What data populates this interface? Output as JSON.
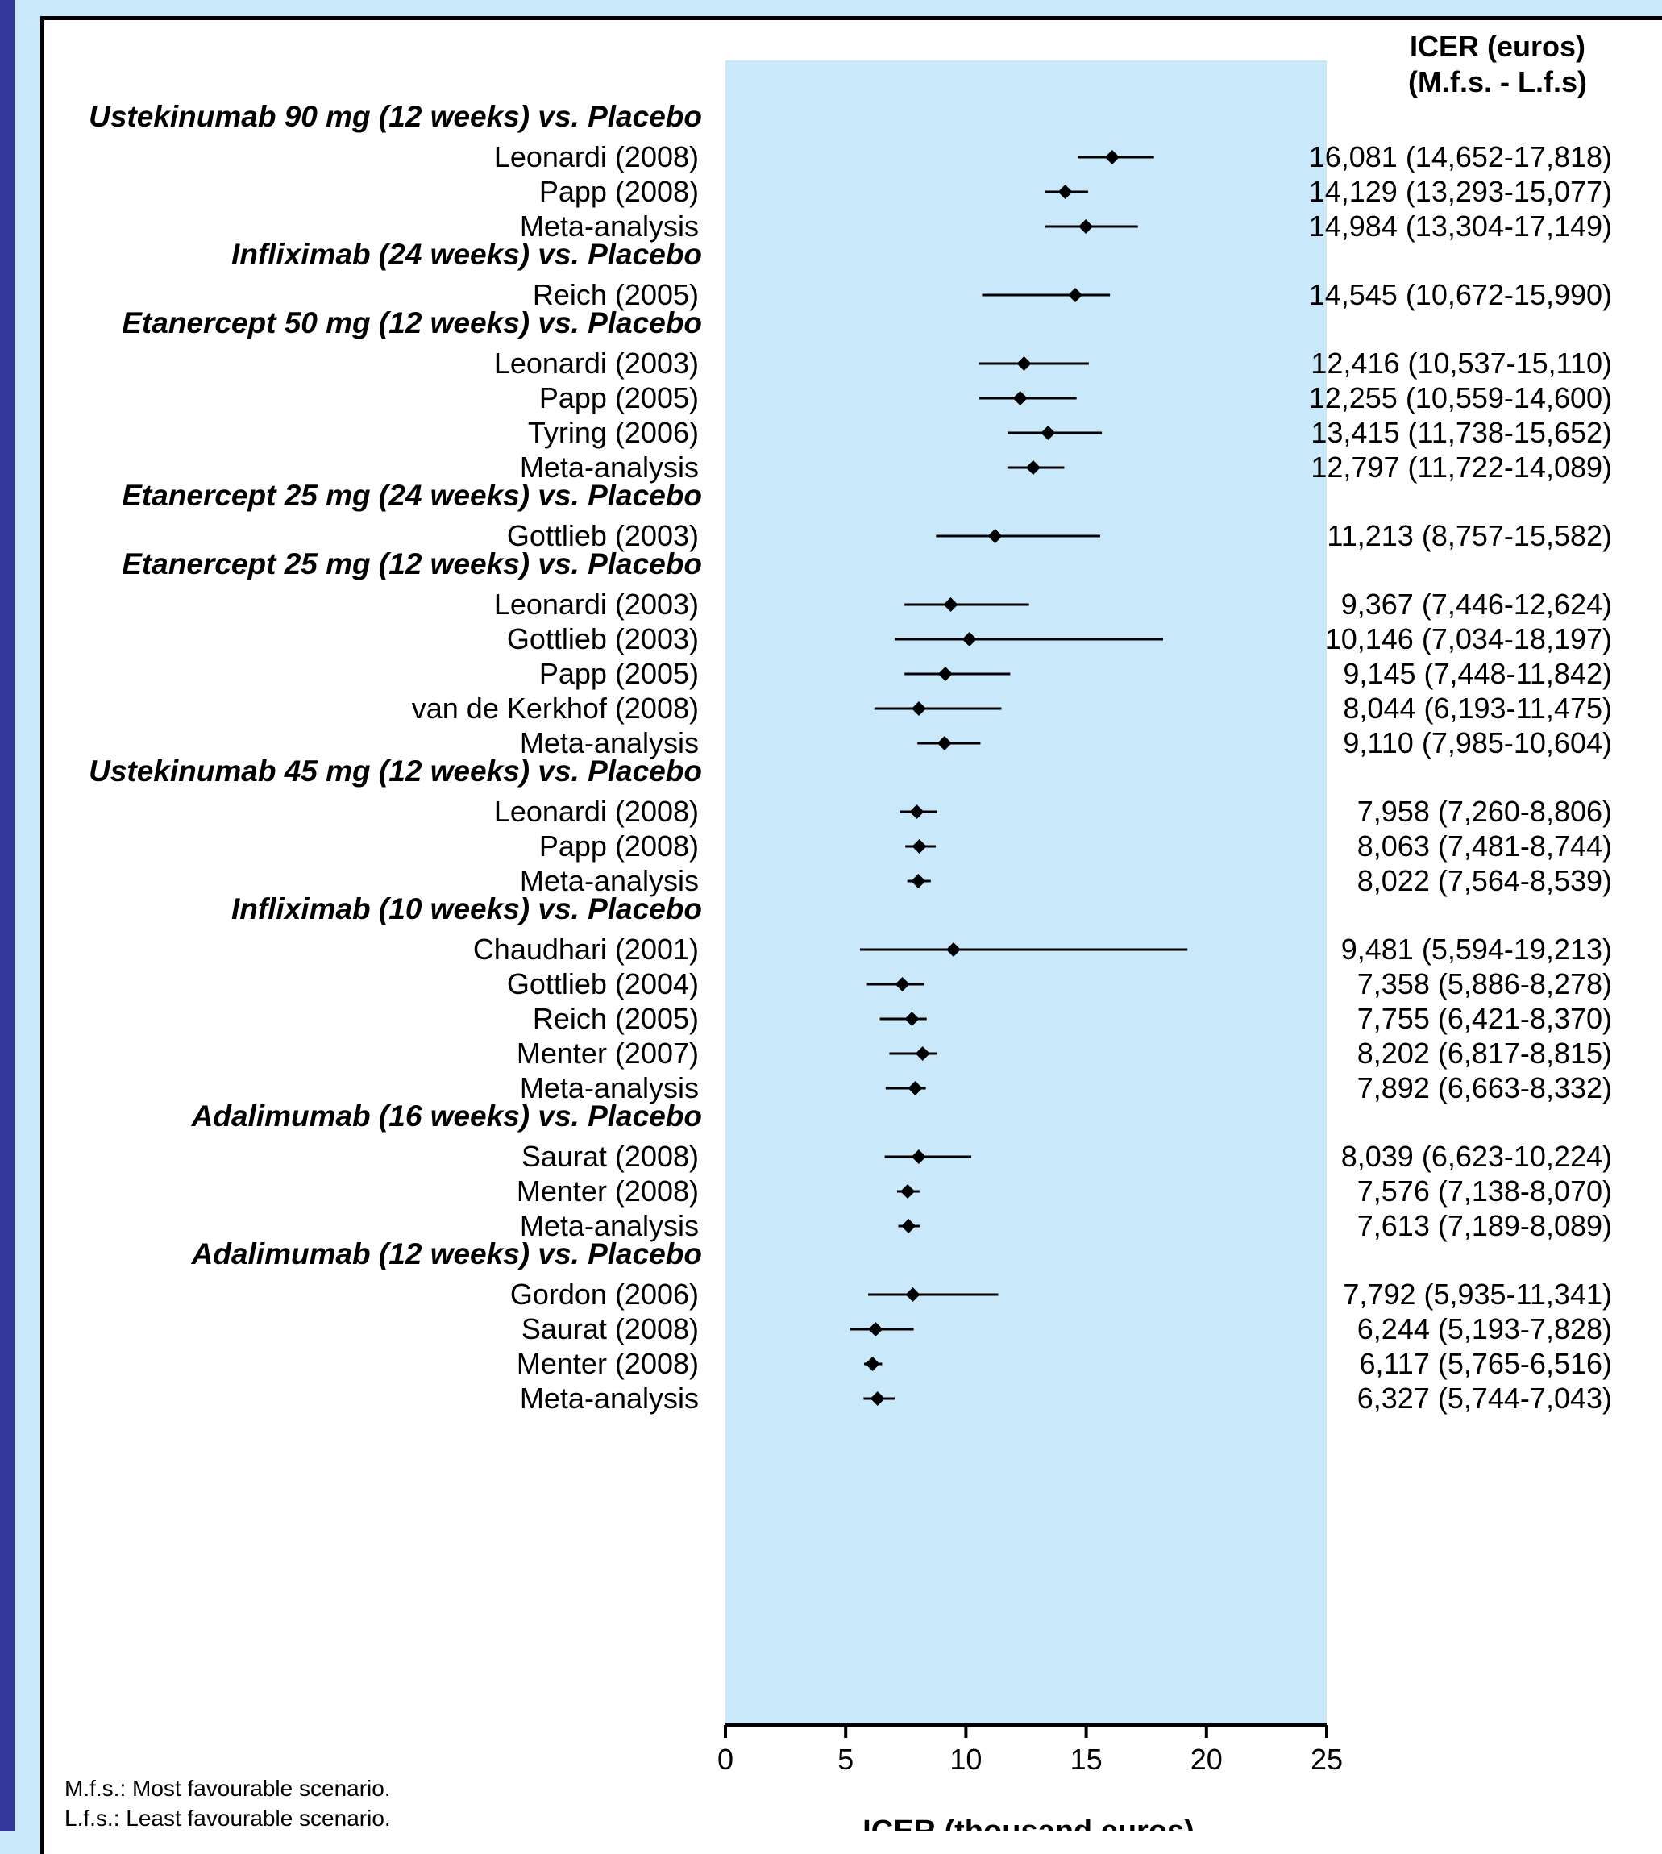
{
  "colors": {
    "page_background": "#c9e9fb",
    "left_band": "#33389a",
    "panel_background": "#ffffff",
    "plot_shading": "#c9e9fb",
    "marks": "#000000"
  },
  "header": {
    "icer_column_title_line1": "ICER (euros)",
    "icer_column_title_line2": "(M.f.s. - L.f.s)"
  },
  "footnotes": {
    "line1": "M.f.s.: Most favourable scenario.",
    "line2": "L.f.s.: Least favourable scenario."
  },
  "chart_data": {
    "type": "forest",
    "xlabel": "ICER (thousand euros)",
    "xlim": [
      0,
      25
    ],
    "xticks": [
      "0",
      "5",
      "10",
      "15",
      "20",
      "25"
    ],
    "marker": "diamond",
    "groups": [
      {
        "name": "Ustekinumab 90 mg (12 weeks) vs. Placebo",
        "studies": [
          {
            "label": "Leonardi (2008)",
            "estimate": 16.081,
            "low": 14.652,
            "high": 17.818,
            "text": "16,081 (14,652-17,818)"
          },
          {
            "label": "Papp (2008)",
            "estimate": 14.129,
            "low": 13.293,
            "high": 15.077,
            "text": "14,129 (13,293-15,077)"
          },
          {
            "label": "Meta-analysis",
            "estimate": 14.984,
            "low": 13.304,
            "high": 17.149,
            "text": "14,984 (13,304-17,149)"
          }
        ]
      },
      {
        "name": "Infliximab (24 weeks) vs. Placebo",
        "studies": [
          {
            "label": "Reich (2005)",
            "estimate": 14.545,
            "low": 10.672,
            "high": 15.99,
            "text": "14,545 (10,672-15,990)"
          }
        ]
      },
      {
        "name": "Etanercept 50 mg (12 weeks) vs. Placebo",
        "studies": [
          {
            "label": "Leonardi (2003)",
            "estimate": 12.416,
            "low": 10.537,
            "high": 15.11,
            "text": "12,416 (10,537-15,110)"
          },
          {
            "label": "Papp (2005)",
            "estimate": 12.255,
            "low": 10.559,
            "high": 14.6,
            "text": "12,255 (10,559-14,600)"
          },
          {
            "label": "Tyring (2006)",
            "estimate": 13.415,
            "low": 11.738,
            "high": 15.652,
            "text": "13,415 (11,738-15,652)"
          },
          {
            "label": "Meta-analysis",
            "estimate": 12.797,
            "low": 11.722,
            "high": 14.089,
            "text": "12,797 (11,722-14,089)"
          }
        ]
      },
      {
        "name": "Etanercept 25 mg (24 weeks) vs. Placebo",
        "studies": [
          {
            "label": "Gottlieb (2003)",
            "estimate": 11.213,
            "low": 8.757,
            "high": 15.582,
            "text": "11,213 (8,757-15,582)"
          }
        ]
      },
      {
        "name": "Etanercept 25 mg (12 weeks) vs. Placebo",
        "studies": [
          {
            "label": "Leonardi (2003)",
            "estimate": 9.367,
            "low": 7.446,
            "high": 12.624,
            "text": "9,367 (7,446-12,624)"
          },
          {
            "label": "Gottlieb (2003)",
            "estimate": 10.146,
            "low": 7.034,
            "high": 18.197,
            "text": "10,146 (7,034-18,197)"
          },
          {
            "label": "Papp (2005)",
            "estimate": 9.145,
            "low": 7.448,
            "high": 11.842,
            "text": "9,145 (7,448-11,842)"
          },
          {
            "label": "van de Kerkhof (2008)",
            "estimate": 8.044,
            "low": 6.193,
            "high": 11.475,
            "text": "8,044 (6,193-11,475)"
          },
          {
            "label": "Meta-analysis",
            "estimate": 9.11,
            "low": 7.985,
            "high": 10.604,
            "text": "9,110 (7,985-10,604)"
          }
        ]
      },
      {
        "name": "Ustekinumab 45 mg (12 weeks) vs. Placebo",
        "studies": [
          {
            "label": "Leonardi (2008)",
            "estimate": 7.958,
            "low": 7.26,
            "high": 8.806,
            "text": "7,958 (7,260-8,806)"
          },
          {
            "label": "Papp (2008)",
            "estimate": 8.063,
            "low": 7.481,
            "high": 8.744,
            "text": "8,063 (7,481-8,744)"
          },
          {
            "label": "Meta-analysis",
            "estimate": 8.022,
            "low": 7.564,
            "high": 8.539,
            "text": "8,022 (7,564-8,539)"
          }
        ]
      },
      {
        "name": "Infliximab (10 weeks) vs. Placebo",
        "studies": [
          {
            "label": "Chaudhari (2001)",
            "estimate": 9.481,
            "low": 5.594,
            "high": 19.213,
            "text": "9,481 (5,594-19,213)"
          },
          {
            "label": "Gottlieb (2004)",
            "estimate": 7.358,
            "low": 5.886,
            "high": 8.278,
            "text": "7,358 (5,886-8,278)"
          },
          {
            "label": "Reich (2005)",
            "estimate": 7.755,
            "low": 6.421,
            "high": 8.37,
            "text": "7,755 (6,421-8,370)"
          },
          {
            "label": "Menter (2007)",
            "estimate": 8.202,
            "low": 6.817,
            "high": 8.815,
            "text": "8,202 (6,817-8,815)"
          },
          {
            "label": "Meta-analysis",
            "estimate": 7.892,
            "low": 6.663,
            "high": 8.332,
            "text": "7,892 (6,663-8,332)"
          }
        ]
      },
      {
        "name": "Adalimumab (16 weeks) vs. Placebo",
        "studies": [
          {
            "label": "Saurat (2008)",
            "estimate": 8.039,
            "low": 6.623,
            "high": 10.224,
            "text": "8,039 (6,623-10,224)"
          },
          {
            "label": "Menter (2008)",
            "estimate": 7.576,
            "low": 7.138,
            "high": 8.07,
            "text": "7,576 (7,138-8,070)"
          },
          {
            "label": "Meta-analysis",
            "estimate": 7.613,
            "low": 7.189,
            "high": 8.089,
            "text": "7,613 (7,189-8,089)"
          }
        ]
      },
      {
        "name": "Adalimumab (12 weeks) vs. Placebo",
        "studies": [
          {
            "label": "Gordon (2006)",
            "estimate": 7.792,
            "low": 5.935,
            "high": 11.341,
            "text": "7,792 (5,935-11,341)"
          },
          {
            "label": "Saurat (2008)",
            "estimate": 6.244,
            "low": 5.193,
            "high": 7.828,
            "text": "6,244 (5,193-7,828)"
          },
          {
            "label": "Menter (2008)",
            "estimate": 6.117,
            "low": 5.765,
            "high": 6.516,
            "text": "6,117 (5,765-6,516)"
          },
          {
            "label": "Meta-analysis",
            "estimate": 6.327,
            "low": 5.744,
            "high": 7.043,
            "text": "6,327 (5,744-7,043)"
          }
        ]
      }
    ]
  }
}
